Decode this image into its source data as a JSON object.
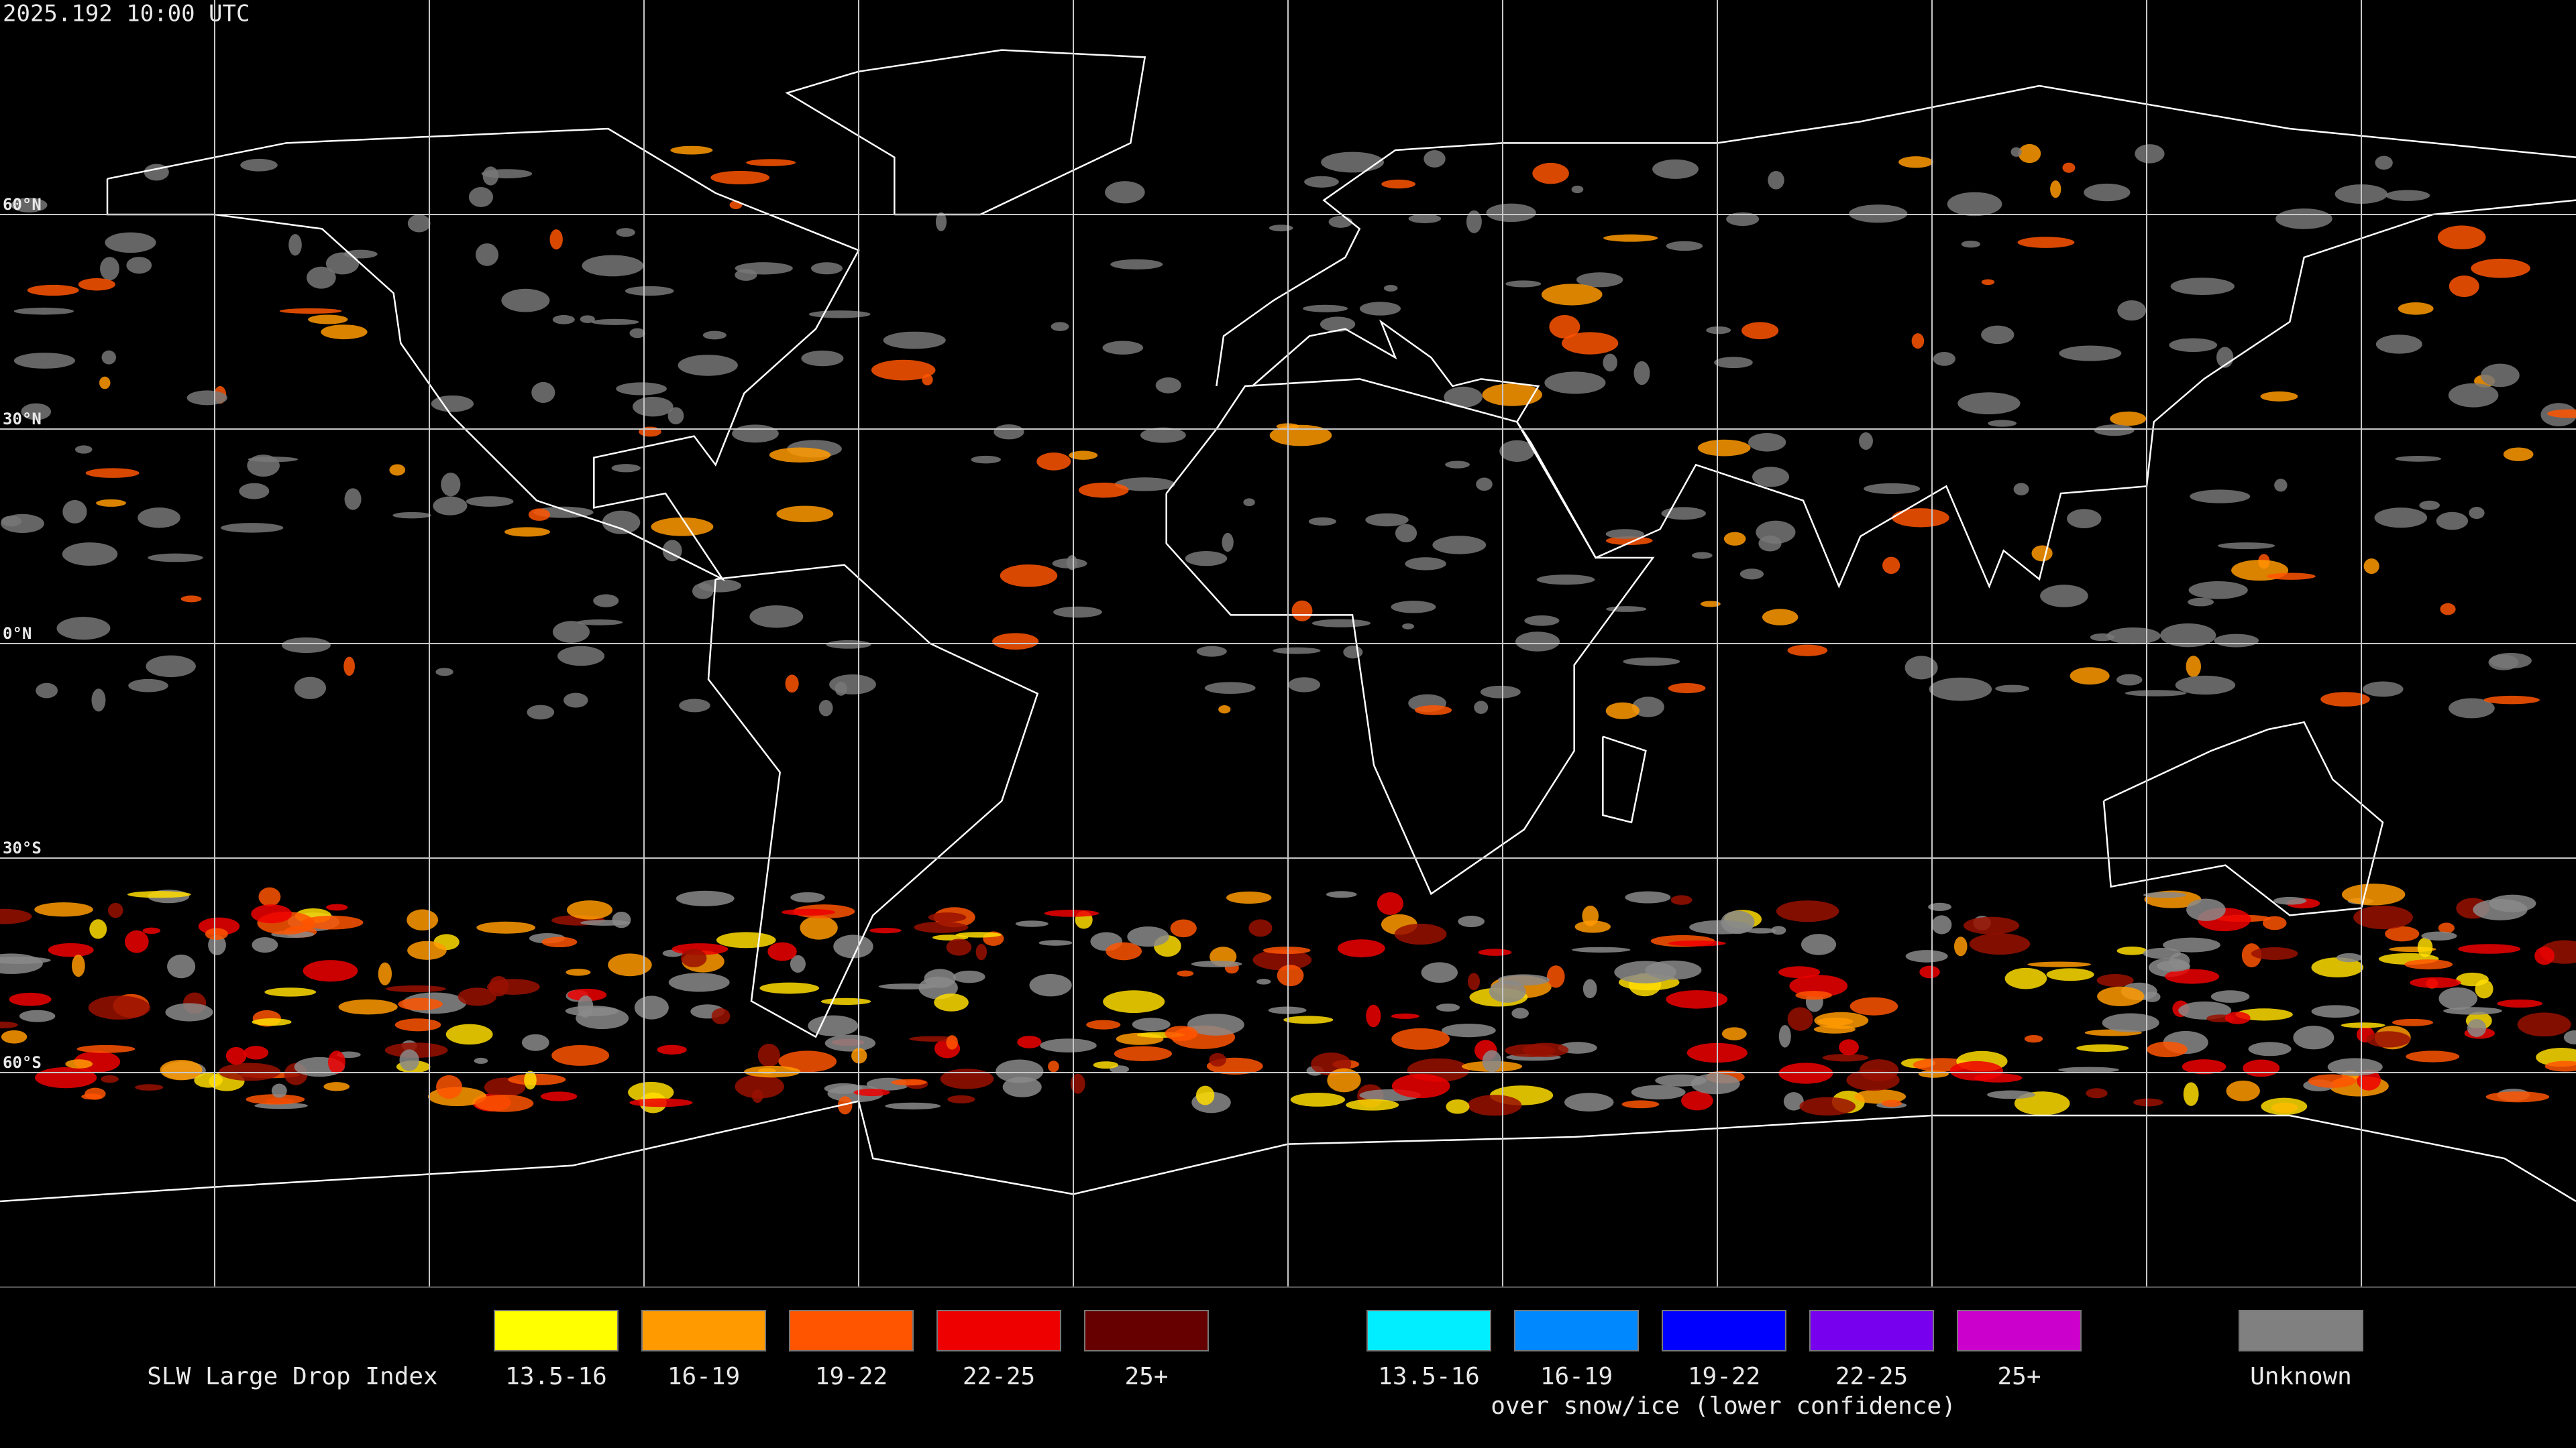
{
  "header": {
    "timestamp": "2025.192 10:00 UTC"
  },
  "map": {
    "latitude_labels": [
      "60°N",
      "30°N",
      "0°N",
      "30°S",
      "60°S"
    ]
  },
  "legend": {
    "title": "SLW Large Drop Index",
    "entries": [
      {
        "label": "13.5-16",
        "color": "#ffff00"
      },
      {
        "label": "16-19",
        "color": "#ff9a00"
      },
      {
        "label": "19-22",
        "color": "#ff5500"
      },
      {
        "label": "22-25",
        "color": "#ee0000"
      },
      {
        "label": "25+",
        "color": "#660000"
      }
    ],
    "snow_entries": [
      {
        "label": "13.5-16",
        "color": "#00eeff"
      },
      {
        "label": "16-19",
        "color": "#0088ff"
      },
      {
        "label": "19-22",
        "color": "#0000ff"
      },
      {
        "label": "22-25",
        "color": "#7700ee"
      },
      {
        "label": "25+",
        "color": "#cc00cc"
      }
    ],
    "snow_caption": "over snow/ice (lower confidence)",
    "unknown": {
      "label": "Unknown",
      "color": "#808080"
    }
  }
}
